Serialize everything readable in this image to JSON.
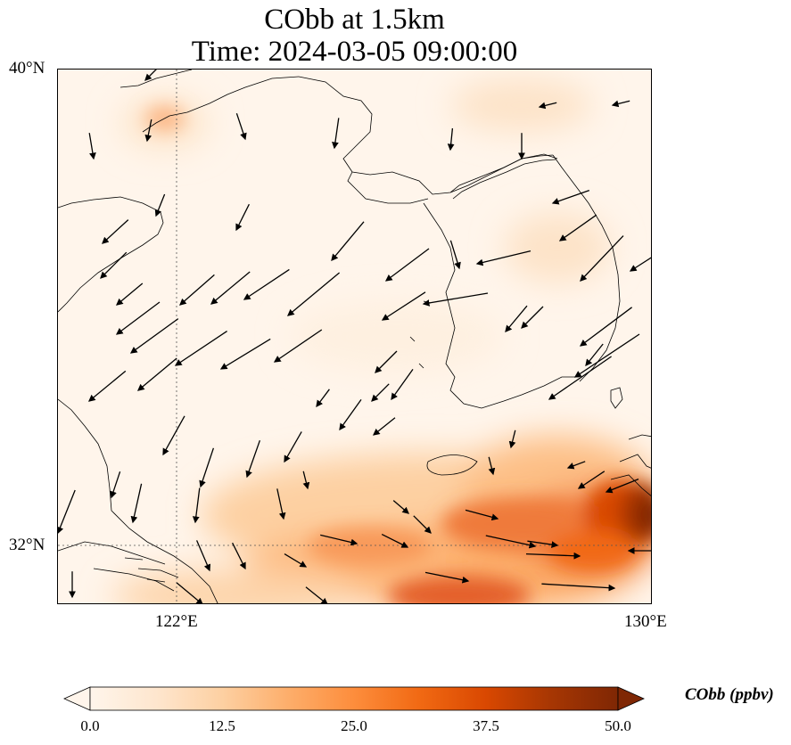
{
  "title": {
    "line1": "CObb at 1.5km",
    "line2": "Time: 2024-03-05 09:00:00"
  },
  "map": {
    "lat_labels": [
      "40°N",
      "32°N"
    ],
    "lon_labels": [
      "122°E",
      "130°E"
    ],
    "variable": "CObb",
    "units": "ppbv",
    "gridlines": "dotted at 122°E and 32°N",
    "colormap": [
      "#fff5eb",
      "#fee6ce",
      "#fdd0a2",
      "#fdae6b",
      "#fd8d3c",
      "#f16913",
      "#d94801",
      "#a63603",
      "#7f2704"
    ]
  },
  "colorbar": {
    "label": "CObb (ppbv)",
    "ticks": [
      "0.0",
      "12.5",
      "25.0",
      "37.5",
      "50.0"
    ],
    "min": 0,
    "max": 50,
    "extend": "both"
  }
}
